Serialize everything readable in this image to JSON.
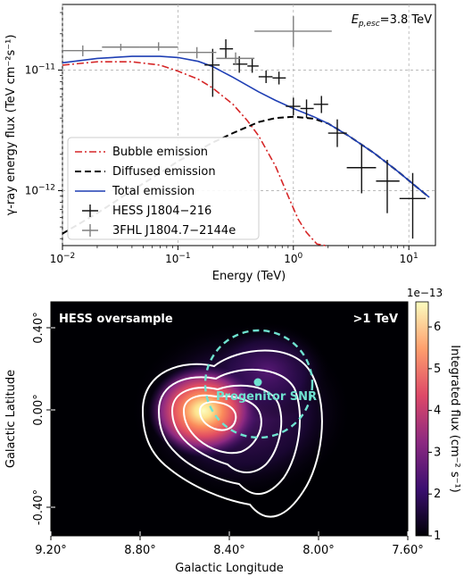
{
  "chart_data": [
    {
      "type": "line",
      "annotation": "E",
      "annotation_sub": "p,esc",
      "annotation_value": "=3.8 TeV",
      "xlabel": "Energy (TeV)",
      "ylabel": "γ-ray energy flux (TeV cm⁻²s⁻¹)",
      "x_scale": "log",
      "y_scale": "log",
      "xlim": [
        0.01,
        17
      ],
      "ylim": [
        3.5e-13,
        3.5e-11
      ],
      "grid": true,
      "legend_position": "lower-left",
      "x_ticks": [
        {
          "value": 0.01,
          "base": "10",
          "exp": "−2"
        },
        {
          "value": 0.1,
          "base": "10",
          "exp": "−1"
        },
        {
          "value": 1,
          "base": "10",
          "exp": "0"
        },
        {
          "value": 10,
          "base": "10",
          "exp": "1"
        }
      ],
      "y_ticks": [
        {
          "value": 1e-12,
          "base": "10",
          "exp": "−12"
        },
        {
          "value": 1e-11,
          "base": "10",
          "exp": "−11"
        }
      ],
      "series": [
        {
          "name": "Bubble emission",
          "style": "dashdot",
          "color": "#d62728",
          "x": [
            0.01,
            0.02,
            0.04,
            0.07,
            0.1,
            0.15,
            0.2,
            0.3,
            0.4,
            0.5,
            0.7,
            0.9,
            1.1,
            1.3,
            1.6,
            1.9
          ],
          "y": [
            1.1e-11,
            1.17e-11,
            1.17e-11,
            1.1e-11,
            9.8e-12,
            8.4e-12,
            7.1e-12,
            5.2e-12,
            3.8e-12,
            2.85e-12,
            1.6e-12,
            9e-13,
            5.8e-13,
            4.5e-13,
            3.6e-13,
            3.5e-13
          ]
        },
        {
          "name": "Diffused emission",
          "style": "dashed",
          "color": "#000000",
          "x": [
            0.01,
            0.02,
            0.04,
            0.07,
            0.1,
            0.2,
            0.3,
            0.5,
            0.7,
            1.0,
            1.5,
            2,
            3,
            5,
            8,
            12,
            15
          ],
          "y": [
            4.4e-13,
            6.5e-13,
            1e-12,
            1.4e-12,
            1.75e-12,
            2.5e-12,
            3e-12,
            3.7e-12,
            4e-12,
            4.1e-12,
            3.95e-12,
            3.6e-12,
            2.85e-12,
            2.05e-12,
            1.45e-12,
            1.05e-12,
            8.8e-13
          ]
        },
        {
          "name": "Total emission",
          "style": "solid",
          "color": "#1f3fb4",
          "x": [
            0.01,
            0.02,
            0.04,
            0.07,
            0.1,
            0.15,
            0.2,
            0.3,
            0.5,
            0.7,
            1.0,
            1.5,
            2,
            3,
            5,
            8,
            12,
            15
          ],
          "y": [
            1.15e-11,
            1.25e-11,
            1.3e-11,
            1.3e-11,
            1.27e-11,
            1.18e-11,
            1.07e-11,
            8.7e-12,
            6.6e-12,
            5.6e-12,
            4.8e-12,
            4.1e-12,
            3.6e-12,
            2.85e-12,
            2.05e-12,
            1.45e-12,
            1.05e-12,
            8.8e-13
          ]
        }
      ],
      "points": [
        {
          "name": "HESS J1804−216",
          "color": "#111111",
          "data": [
            {
              "x": 0.2,
              "y": 1.1e-11,
              "xlo": 0.17,
              "xhi": 0.23,
              "ylo": 6e-12,
              "yhi": 1.5e-11
            },
            {
              "x": 0.26,
              "y": 1.5e-11,
              "xlo": 0.23,
              "xhi": 0.3,
              "ylo": 1.25e-11,
              "yhi": 1.8e-11
            },
            {
              "x": 0.34,
              "y": 1.12e-11,
              "xlo": 0.3,
              "xhi": 0.4,
              "ylo": 9.5e-12,
              "yhi": 1.3e-11
            },
            {
              "x": 0.44,
              "y": 1.08e-11,
              "xlo": 0.4,
              "xhi": 0.5,
              "ylo": 9.5e-12,
              "yhi": 1.25e-11
            },
            {
              "x": 0.58,
              "y": 8.8e-12,
              "xlo": 0.5,
              "xhi": 0.66,
              "ylo": 7.8e-12,
              "yhi": 9.9e-12
            },
            {
              "x": 0.75,
              "y": 8.6e-12,
              "xlo": 0.66,
              "xhi": 0.86,
              "ylo": 7.6e-12,
              "yhi": 9.7e-12
            },
            {
              "x": 1.0,
              "y": 5e-12,
              "xlo": 0.86,
              "xhi": 1.15,
              "ylo": 4.2e-12,
              "yhi": 5.9e-12
            },
            {
              "x": 1.3,
              "y": 4.8e-12,
              "xlo": 1.15,
              "xhi": 1.5,
              "ylo": 4e-12,
              "yhi": 5.7e-12
            },
            {
              "x": 1.75,
              "y": 5.2e-12,
              "xlo": 1.5,
              "xhi": 2.0,
              "ylo": 4.4e-12,
              "yhi": 6.1e-12
            },
            {
              "x": 2.4,
              "y": 3e-12,
              "xlo": 2.0,
              "xhi": 2.9,
              "ylo": 2.3e-12,
              "yhi": 3.9e-12
            },
            {
              "x": 3.9,
              "y": 1.55e-12,
              "xlo": 2.9,
              "xhi": 5.2,
              "ylo": 9.5e-13,
              "yhi": 2.4e-12
            },
            {
              "x": 6.5,
              "y": 1.2e-12,
              "xlo": 5.2,
              "xhi": 8.3,
              "ylo": 6.5e-13,
              "yhi": 1.8e-12
            },
            {
              "x": 10.8,
              "y": 8.6e-13,
              "xlo": 8.3,
              "xhi": 14.0,
              "ylo": 4e-13,
              "yhi": 1.4e-12
            }
          ]
        },
        {
          "name": "3FHL J1804.7−2144e",
          "color": "#7f7f7f",
          "data": [
            {
              "x": 0.015,
              "y": 1.45e-11,
              "xlo": 0.01,
              "xhi": 0.022,
              "ylo": 1.3e-11,
              "yhi": 1.6e-11
            },
            {
              "x": 0.032,
              "y": 1.55e-11,
              "xlo": 0.022,
              "xhi": 0.047,
              "ylo": 1.45e-11,
              "yhi": 1.65e-11
            },
            {
              "x": 0.068,
              "y": 1.55e-11,
              "xlo": 0.047,
              "xhi": 0.1,
              "ylo": 1.45e-11,
              "yhi": 1.7e-11
            },
            {
              "x": 0.146,
              "y": 1.4e-11,
              "xlo": 0.1,
              "xhi": 0.215,
              "ylo": 1.25e-11,
              "yhi": 1.55e-11
            },
            {
              "x": 0.316,
              "y": 1.25e-11,
              "xlo": 0.215,
              "xhi": 0.46,
              "ylo": 1.1e-11,
              "yhi": 1.4e-11
            },
            {
              "x": 1.0,
              "y": 2.1e-11,
              "xlo": 0.46,
              "xhi": 2.15,
              "ylo": 1.55e-11,
              "yhi": 2.8e-11
            }
          ]
        }
      ]
    },
    {
      "type": "heatmap",
      "title_left": "HESS oversample",
      "title_right": ">1 TeV",
      "xlabel": "Galactic Longitude",
      "ylabel": "Galactic Latitude",
      "x_ticks": [
        "9.20°",
        "8.80°",
        "8.40°",
        "8.00°",
        "7.60°"
      ],
      "y_ticks": [
        "0.40°",
        "0.00°",
        "-0.40°"
      ],
      "colorbar_label": "Integrated flux (cm⁻² s⁻¹)",
      "colorbar_offset": "1e−13",
      "colorbar_ticks": [
        "1",
        "2",
        "3",
        "4",
        "5",
        "6"
      ],
      "colorbar_range": [
        1,
        6.6
      ],
      "colormap": [
        "#000004",
        "#3b0f70",
        "#8c2981",
        "#de4968",
        "#fe9f6d",
        "#fcfdbf"
      ],
      "marker_label": "Progenitor SNR",
      "marker_color": "#6fe3d0"
    }
  ]
}
